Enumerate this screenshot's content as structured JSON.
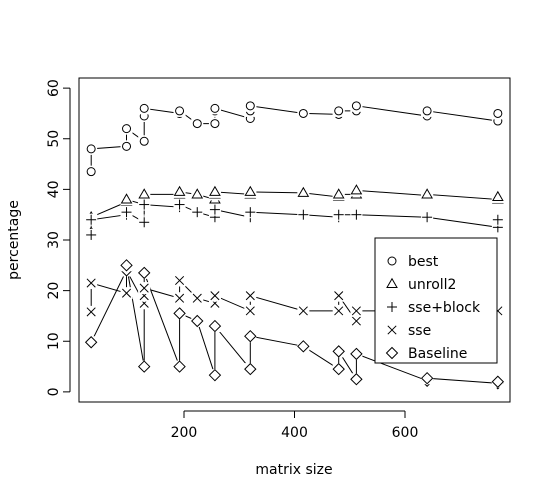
{
  "chart_data": {
    "type": "scatter",
    "title": "",
    "xlabel": "matrix size",
    "ylabel": "percentage",
    "xlim": [
      10,
      790
    ],
    "ylim": [
      -2,
      62
    ],
    "x_ticks": [
      200,
      400,
      600
    ],
    "y_ticks": [
      0,
      10,
      20,
      30,
      40,
      50,
      60
    ],
    "grid": false,
    "legend_position": "right",
    "series": [
      {
        "name": "best",
        "marker": "circle",
        "points": [
          [
            32,
            43.5
          ],
          [
            32,
            48
          ],
          [
            96,
            48.5
          ],
          [
            96,
            52
          ],
          [
            128,
            49.5
          ],
          [
            128,
            54.5
          ],
          [
            128,
            56
          ],
          [
            192,
            55
          ],
          [
            192,
            55.5
          ],
          [
            224,
            53
          ],
          [
            256,
            53
          ],
          [
            256,
            55.5
          ],
          [
            256,
            56
          ],
          [
            320,
            54
          ],
          [
            320,
            55.5
          ],
          [
            320,
            56.5
          ],
          [
            416,
            55
          ],
          [
            480,
            54.8
          ],
          [
            480,
            55.5
          ],
          [
            512,
            55.5
          ],
          [
            512,
            56.5
          ],
          [
            640,
            54.5
          ],
          [
            640,
            55.5
          ],
          [
            768,
            53.5
          ],
          [
            768,
            55
          ]
        ]
      },
      {
        "name": "unroll2",
        "marker": "triangle",
        "points": [
          [
            32,
            31.5
          ],
          [
            32,
            34.5
          ],
          [
            96,
            37.5
          ],
          [
            96,
            38
          ],
          [
            128,
            37
          ],
          [
            128,
            38
          ],
          [
            128,
            39
          ],
          [
            192,
            39
          ],
          [
            192,
            39.5
          ],
          [
            224,
            39
          ],
          [
            256,
            38
          ],
          [
            256,
            39
          ],
          [
            256,
            39.5
          ],
          [
            320,
            39
          ],
          [
            320,
            39.5
          ],
          [
            416,
            39.3
          ],
          [
            480,
            38.5
          ],
          [
            480,
            39
          ],
          [
            512,
            39
          ],
          [
            512,
            39.8
          ],
          [
            640,
            38.8
          ],
          [
            640,
            39
          ],
          [
            768,
            38
          ],
          [
            768,
            38.5
          ]
        ]
      },
      {
        "name": "sse+block",
        "marker": "plus",
        "points": [
          [
            32,
            31
          ],
          [
            32,
            34
          ],
          [
            96,
            35
          ],
          [
            96,
            35.5
          ],
          [
            128,
            33.5
          ],
          [
            128,
            36
          ],
          [
            128,
            37
          ],
          [
            192,
            36.5
          ],
          [
            192,
            37
          ],
          [
            224,
            35.5
          ],
          [
            256,
            34.5
          ],
          [
            256,
            36
          ],
          [
            320,
            34.5
          ],
          [
            320,
            35.5
          ],
          [
            416,
            35
          ],
          [
            480,
            34.5
          ],
          [
            480,
            35
          ],
          [
            512,
            35
          ],
          [
            640,
            34.5
          ],
          [
            768,
            32.5
          ],
          [
            768,
            34
          ]
        ]
      },
      {
        "name": "sse",
        "marker": "cross",
        "points": [
          [
            32,
            15.8
          ],
          [
            32,
            21.5
          ],
          [
            96,
            19.5
          ],
          [
            96,
            24
          ],
          [
            128,
            17.5
          ],
          [
            128,
            19
          ],
          [
            128,
            20.5
          ],
          [
            192,
            18.5
          ],
          [
            192,
            22
          ],
          [
            224,
            18.5
          ],
          [
            256,
            17.5
          ],
          [
            256,
            19
          ],
          [
            320,
            16
          ],
          [
            320,
            19
          ],
          [
            416,
            16
          ],
          [
            480,
            16
          ],
          [
            480,
            19
          ],
          [
            512,
            14
          ],
          [
            512,
            16
          ],
          [
            640,
            16
          ],
          [
            768,
            16
          ]
        ]
      },
      {
        "name": "Baseline",
        "marker": "diamond",
        "points": [
          [
            32,
            9.8
          ],
          [
            96,
            24
          ],
          [
            96,
            25
          ],
          [
            128,
            5
          ],
          [
            128,
            23.5
          ],
          [
            192,
            5
          ],
          [
            192,
            15.5
          ],
          [
            224,
            14
          ],
          [
            256,
            3.3
          ],
          [
            256,
            13
          ],
          [
            320,
            4.5
          ],
          [
            320,
            11
          ],
          [
            416,
            9
          ],
          [
            480,
            4.5
          ],
          [
            480,
            8
          ],
          [
            512,
            2.5
          ],
          [
            512,
            7.5
          ],
          [
            640,
            2.2
          ],
          [
            640,
            2.7
          ],
          [
            768,
            1.7
          ],
          [
            768,
            2
          ]
        ]
      }
    ]
  }
}
